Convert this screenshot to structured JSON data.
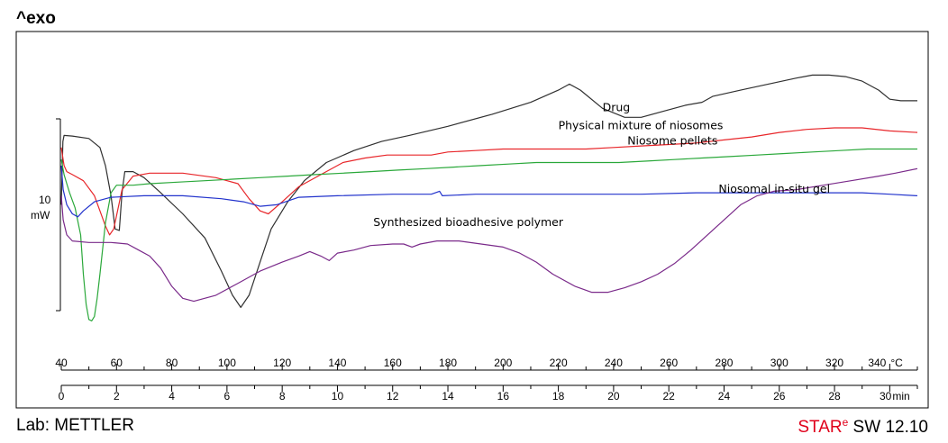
{
  "chart_data": {
    "type": "line",
    "title": "^exo",
    "scale_bar": {
      "value": "10",
      "unit": "mW"
    },
    "x_temperature_axis": {
      "min": 40,
      "max": 350,
      "unit": "°C",
      "ticks": [
        40,
        60,
        80,
        100,
        120,
        140,
        160,
        180,
        200,
        220,
        240,
        260,
        280,
        300,
        320,
        340
      ]
    },
    "x_time_axis": {
      "min": 0,
      "max": 31,
      "unit": "min",
      "ticks": [
        0,
        2,
        4,
        6,
        8,
        10,
        12,
        14,
        16,
        18,
        20,
        22,
        24,
        26,
        28,
        30
      ]
    },
    "y_range": [
      0,
      100
    ],
    "series": [
      {
        "name": "Drug",
        "color": "#303030",
        "label_at": [
          236,
          84
        ],
        "points": [
          [
            40,
            53
          ],
          [
            40.6,
            74
          ],
          [
            41,
            76
          ],
          [
            44,
            75.8
          ],
          [
            50,
            75
          ],
          [
            54,
            72
          ],
          [
            56,
            66
          ],
          [
            58,
            56
          ],
          [
            59.5,
            45
          ],
          [
            61,
            44.5
          ],
          [
            62,
            57
          ],
          [
            63,
            64
          ],
          [
            66,
            64
          ],
          [
            70,
            62
          ],
          [
            76,
            57
          ],
          [
            84,
            50
          ],
          [
            92,
            42
          ],
          [
            98,
            31
          ],
          [
            102,
            23
          ],
          [
            105,
            19
          ],
          [
            108,
            23
          ],
          [
            112,
            34
          ],
          [
            116,
            45
          ],
          [
            122,
            54
          ],
          [
            128,
            61
          ],
          [
            136,
            67
          ],
          [
            146,
            71
          ],
          [
            156,
            74
          ],
          [
            166,
            76
          ],
          [
            180,
            79
          ],
          [
            196,
            83
          ],
          [
            210,
            87
          ],
          [
            220,
            91
          ],
          [
            224,
            93
          ],
          [
            228,
            91
          ],
          [
            236,
            85
          ],
          [
            244,
            82
          ],
          [
            250,
            82
          ],
          [
            258,
            84
          ],
          [
            266,
            86
          ],
          [
            272,
            87
          ],
          [
            276,
            89
          ],
          [
            286,
            91
          ],
          [
            296,
            93
          ],
          [
            306,
            95
          ],
          [
            312,
            96
          ],
          [
            318,
            96
          ],
          [
            324,
            95.5
          ],
          [
            330,
            94
          ],
          [
            336,
            91
          ],
          [
            340,
            88
          ],
          [
            344,
            87.5
          ],
          [
            350,
            87.5
          ]
        ]
      },
      {
        "name": "Physical mixture of niosomes",
        "color": "#e8262a",
        "label_at": [
          220,
          78
        ],
        "points": [
          [
            40,
            72
          ],
          [
            41,
            66
          ],
          [
            42,
            64
          ],
          [
            44,
            63
          ],
          [
            48,
            61
          ],
          [
            52,
            56
          ],
          [
            56,
            46
          ],
          [
            57.5,
            43
          ],
          [
            59,
            45
          ],
          [
            62,
            58
          ],
          [
            66,
            62.5
          ],
          [
            72,
            63.5
          ],
          [
            84,
            63.5
          ],
          [
            96,
            62
          ],
          [
            104,
            60
          ],
          [
            108,
            55
          ],
          [
            112,
            51
          ],
          [
            115,
            50
          ],
          [
            120,
            54
          ],
          [
            126,
            59
          ],
          [
            134,
            63
          ],
          [
            142,
            67
          ],
          [
            150,
            68.5
          ],
          [
            158,
            69.5
          ],
          [
            166,
            69.5
          ],
          [
            174,
            69.5
          ],
          [
            180,
            70.5
          ],
          [
            190,
            71
          ],
          [
            200,
            71.5
          ],
          [
            210,
            71.5
          ],
          [
            220,
            71.5
          ],
          [
            230,
            71.5
          ],
          [
            240,
            72
          ],
          [
            250,
            72.5
          ],
          [
            260,
            73
          ],
          [
            270,
            73.5
          ],
          [
            280,
            74.5
          ],
          [
            290,
            75.5
          ],
          [
            300,
            77
          ],
          [
            310,
            78
          ],
          [
            320,
            78.5
          ],
          [
            330,
            78.5
          ],
          [
            340,
            77.5
          ],
          [
            350,
            77
          ]
        ]
      },
      {
        "name": "Niosome pellets",
        "color": "#2aa83a",
        "label_at": [
          245,
          73
        ],
        "points": [
          [
            40,
            68
          ],
          [
            41,
            63
          ],
          [
            42,
            60
          ],
          [
            43,
            57
          ],
          [
            45,
            52
          ],
          [
            47,
            43
          ],
          [
            48,
            30
          ],
          [
            49,
            20
          ],
          [
            50,
            15
          ],
          [
            51,
            14.5
          ],
          [
            52,
            16
          ],
          [
            53,
            22
          ],
          [
            54,
            30
          ],
          [
            56,
            47
          ],
          [
            58,
            57
          ],
          [
            60,
            59.5
          ],
          [
            66,
            59.5
          ],
          [
            72,
            60
          ],
          [
            82,
            60.5
          ],
          [
            92,
            61
          ],
          [
            102,
            61.5
          ],
          [
            112,
            62
          ],
          [
            122,
            62.5
          ],
          [
            132,
            63
          ],
          [
            142,
            63.5
          ],
          [
            152,
            64
          ],
          [
            162,
            64.5
          ],
          [
            172,
            65
          ],
          [
            182,
            65.5
          ],
          [
            192,
            66
          ],
          [
            202,
            66.5
          ],
          [
            212,
            67
          ],
          [
            222,
            67
          ],
          [
            232,
            67
          ],
          [
            242,
            67
          ],
          [
            252,
            67.5
          ],
          [
            262,
            68
          ],
          [
            272,
            68.5
          ],
          [
            282,
            69
          ],
          [
            292,
            69.5
          ],
          [
            302,
            70
          ],
          [
            312,
            70.5
          ],
          [
            322,
            71
          ],
          [
            332,
            71.5
          ],
          [
            342,
            71.5
          ],
          [
            350,
            71.5
          ]
        ]
      },
      {
        "name": "Niosomal in-situ gel",
        "color": "#2233cc",
        "label_at": [
          278,
          57
        ],
        "points": [
          [
            40,
            66
          ],
          [
            40.7,
            58
          ],
          [
            42,
            53
          ],
          [
            44,
            50
          ],
          [
            46,
            49
          ],
          [
            48,
            51
          ],
          [
            52,
            54
          ],
          [
            58,
            55.5
          ],
          [
            70,
            56
          ],
          [
            84,
            56
          ],
          [
            98,
            55
          ],
          [
            106,
            54
          ],
          [
            112,
            52.5
          ],
          [
            118,
            53
          ],
          [
            126,
            55.5
          ],
          [
            140,
            56
          ],
          [
            160,
            56.5
          ],
          [
            174,
            56.5
          ],
          [
            177,
            57.5
          ],
          [
            178,
            56
          ],
          [
            190,
            56.5
          ],
          [
            210,
            56.5
          ],
          [
            230,
            56.5
          ],
          [
            250,
            56.5
          ],
          [
            270,
            57
          ],
          [
            290,
            57
          ],
          [
            310,
            57
          ],
          [
            330,
            57
          ],
          [
            340,
            56.5
          ],
          [
            350,
            56
          ]
        ]
      },
      {
        "name": "Synthesized bioadhesive polymer",
        "color": "#7a2a8a",
        "label_at": [
          153,
          46
        ],
        "points": [
          [
            40,
            56
          ],
          [
            40.7,
            48
          ],
          [
            42,
            43
          ],
          [
            44,
            41
          ],
          [
            50,
            40.5
          ],
          [
            58,
            40.5
          ],
          [
            64,
            40
          ],
          [
            68,
            38
          ],
          [
            72,
            36
          ],
          [
            76,
            32
          ],
          [
            80,
            26
          ],
          [
            84,
            22
          ],
          [
            88,
            21
          ],
          [
            96,
            23
          ],
          [
            104,
            27
          ],
          [
            112,
            31
          ],
          [
            120,
            34
          ],
          [
            126,
            36
          ],
          [
            130,
            37.5
          ],
          [
            134,
            36
          ],
          [
            137,
            34.5
          ],
          [
            140,
            37
          ],
          [
            146,
            38
          ],
          [
            152,
            39.5
          ],
          [
            160,
            40
          ],
          [
            164,
            40
          ],
          [
            167,
            39
          ],
          [
            170,
            40
          ],
          [
            176,
            41
          ],
          [
            184,
            41
          ],
          [
            192,
            40
          ],
          [
            200,
            39
          ],
          [
            206,
            37
          ],
          [
            212,
            34
          ],
          [
            218,
            30
          ],
          [
            226,
            26
          ],
          [
            232,
            24
          ],
          [
            238,
            24
          ],
          [
            244,
            25.5
          ],
          [
            250,
            27.5
          ],
          [
            256,
            30
          ],
          [
            262,
            33.5
          ],
          [
            268,
            38
          ],
          [
            274,
            43
          ],
          [
            280,
            48
          ],
          [
            286,
            53
          ],
          [
            292,
            56
          ],
          [
            298,
            57.5
          ],
          [
            306,
            58
          ],
          [
            316,
            59.5
          ],
          [
            326,
            61
          ],
          [
            336,
            62.5
          ],
          [
            342,
            63.5
          ],
          [
            350,
            65
          ]
        ]
      }
    ]
  },
  "footer": {
    "lab": "Lab: METTLER",
    "brand_star": "STAR",
    "brand_sup": "e",
    "brand_rest": " SW 12.10"
  }
}
